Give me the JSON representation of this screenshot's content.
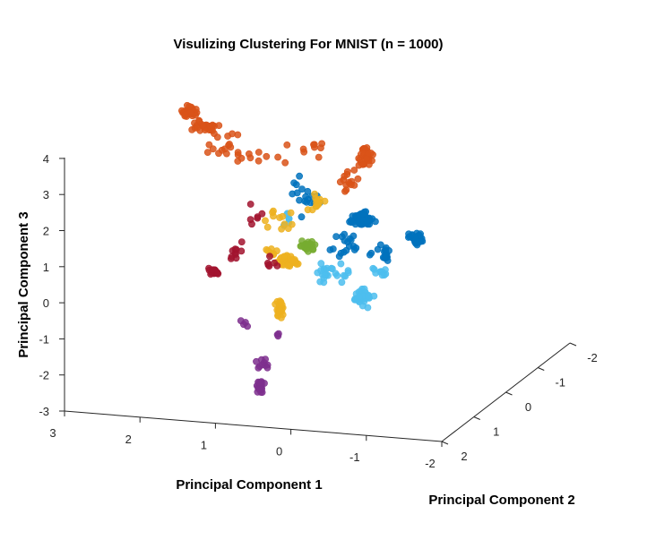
{
  "chart_data": {
    "type": "scatter",
    "dimensions": 3,
    "title": "Visulizing Clustering For MNIST (n = 1000)",
    "xlabel": "Principal Component 1",
    "ylabel": "Principal Component 2",
    "zlabel": "Principal Component 3",
    "xlim": [
      -2,
      3
    ],
    "ylim": [
      -2,
      2
    ],
    "zlim": [
      -3,
      4
    ],
    "xticks": [
      "3",
      "2",
      "1",
      "0",
      "-1",
      "-2"
    ],
    "yticks": [
      "2",
      "1",
      "0",
      "-1",
      "-2"
    ],
    "zticks": [
      "4",
      "3",
      "2",
      "1",
      "0",
      "-1",
      "-2",
      "-3"
    ],
    "grid": false,
    "legend": "none",
    "marker": "filled-circle",
    "colors": {
      "blue": "#0072BD",
      "orange": "#D95319",
      "yellow": "#EDB120",
      "purple": "#7E2F8E",
      "green": "#77AC30",
      "light_blue": "#4DBEEE",
      "dark_red": "#A2142F"
    },
    "clusters_approx_centers": [
      {
        "color": "blue",
        "centers": [
          [
            -1.0,
            0.5,
            2.3
          ],
          [
            -1.8,
            -0.9,
            2.4
          ]
        ]
      },
      {
        "color": "orange",
        "centers": [
          [
            1.8,
            1.1,
            4.6
          ],
          [
            -0.8,
            -0.4,
            3.9
          ]
        ]
      },
      {
        "color": "yellow",
        "centers": [
          [
            0.3,
            0.5,
            1.2
          ],
          [
            0.4,
            1.0,
            0.1
          ]
        ]
      },
      {
        "color": "purple",
        "centers": [
          [
            0.7,
            1.7,
            -1.6
          ]
        ]
      },
      {
        "color": "green",
        "centers": [
          [
            -0.2,
            0.2,
            1.6
          ]
        ]
      },
      {
        "color": "light_blue",
        "centers": [
          [
            -1.1,
            -0.3,
            0.8
          ]
        ]
      },
      {
        "color": "dark_red",
        "centers": [
          [
            2.0,
            1.5,
            0.9
          ]
        ]
      }
    ]
  }
}
